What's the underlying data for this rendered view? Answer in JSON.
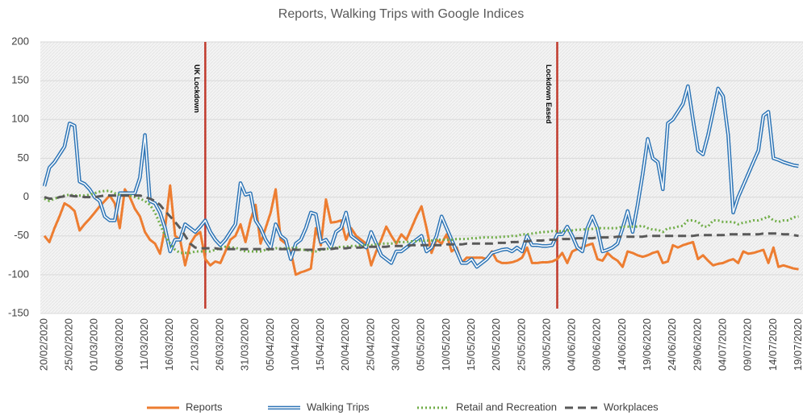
{
  "chart_data": {
    "type": "line",
    "title": "Reports, Walking Trips with Google Indices",
    "categories": [
      "20/02/2020",
      null,
      null,
      null,
      null,
      "25/02/2020",
      null,
      null,
      null,
      null,
      "01/03/2020",
      null,
      null,
      null,
      null,
      "06/03/2020",
      null,
      null,
      null,
      null,
      "11/03/2020",
      null,
      null,
      null,
      null,
      "16/03/2020",
      null,
      null,
      null,
      null,
      "21/03/2020",
      null,
      null,
      null,
      null,
      "26/03/2020",
      null,
      null,
      null,
      null,
      "31/03/2020",
      null,
      null,
      null,
      null,
      "05/04/2020",
      null,
      null,
      null,
      null,
      "10/04/2020",
      null,
      null,
      null,
      null,
      "15/04/2020",
      null,
      null,
      null,
      null,
      "20/04/2020",
      null,
      null,
      null,
      null,
      "25/04/2020",
      null,
      null,
      null,
      null,
      "30/04/2020",
      null,
      null,
      null,
      null,
      "05/05/2020",
      null,
      null,
      null,
      null,
      "10/05/2020",
      null,
      null,
      null,
      null,
      "15/05/2020",
      null,
      null,
      null,
      null,
      "20/05/2020",
      null,
      null,
      null,
      null,
      "25/05/2020",
      null,
      null,
      null,
      null,
      "30/05/2020",
      null,
      null,
      null,
      null,
      "04/06/2020",
      null,
      null,
      null,
      null,
      "09/06/2020",
      null,
      null,
      null,
      null,
      "14/06/2020",
      null,
      null,
      null,
      null,
      "19/06/2020",
      null,
      null,
      null,
      null,
      "24/06/2020",
      null,
      null,
      null,
      null,
      "29/06/2020",
      null,
      null,
      null,
      null,
      "04/07/2020",
      null,
      null,
      null,
      null,
      "09/07/2020",
      null,
      null,
      null,
      null,
      "14/07/2020",
      null,
      null,
      null,
      null,
      "19/07/2020"
    ],
    "series": [
      {
        "name": "Reports",
        "color": "#ed7d31",
        "style": "solid",
        "values": [
          -50,
          -58,
          -40,
          -25,
          -8,
          -12,
          -18,
          -43,
          -35,
          -28,
          -20,
          -12,
          -5,
          2,
          -8,
          -40,
          10,
          0,
          -15,
          -25,
          -45,
          -55,
          -60,
          -73,
          -40,
          15,
          -50,
          -55,
          -88,
          -60,
          -50,
          -45,
          -80,
          -88,
          -83,
          -85,
          -70,
          -55,
          -50,
          -35,
          -58,
          -30,
          -10,
          -60,
          -40,
          -20,
          10,
          -55,
          -60,
          -70,
          -100,
          -97,
          -95,
          -92,
          -40,
          -62,
          -3,
          -33,
          -32,
          -30,
          -55,
          -40,
          -50,
          -55,
          -60,
          -88,
          -70,
          -55,
          -38,
          -50,
          -60,
          -48,
          -55,
          -40,
          -25,
          -12,
          -40,
          -72,
          -55,
          -60,
          -48,
          -70,
          -65,
          -85,
          -78,
          -78,
          -78,
          -78,
          -80,
          -70,
          -82,
          -85,
          -85,
          -84,
          -82,
          -78,
          -65,
          -85,
          -85,
          -84,
          -84,
          -83,
          -80,
          -72,
          -85,
          -70,
          -67,
          -65,
          -62,
          -60,
          -80,
          -82,
          -72,
          -78,
          -82,
          -90,
          -70,
          -72,
          -75,
          -77,
          -75,
          -72,
          -70,
          -85,
          -83,
          -62,
          -65,
          -62,
          -60,
          -58,
          -80,
          -75,
          -82,
          -88,
          -86,
          -85,
          -82,
          -80,
          -85,
          -70,
          -73,
          -72,
          -70,
          -68,
          -85,
          -65,
          -90,
          -88,
          -90,
          -92,
          -93
        ]
      },
      {
        "name": "Walking Trips",
        "color": "#2e75b6",
        "style": "double",
        "values": [
          14,
          38,
          45,
          55,
          65,
          95,
          92,
          20,
          17,
          10,
          0,
          -5,
          -25,
          -30,
          -30,
          5,
          5,
          5,
          5,
          25,
          80,
          -5,
          -8,
          -20,
          -40,
          -70,
          -55,
          -55,
          -35,
          -40,
          -45,
          -38,
          -30,
          -45,
          -55,
          -62,
          -55,
          -45,
          -35,
          18,
          3,
          5,
          -30,
          -40,
          -55,
          -65,
          -35,
          -50,
          -55,
          -80,
          -60,
          -55,
          -40,
          -20,
          -22,
          -58,
          -55,
          -65,
          -45,
          -40,
          -20,
          -50,
          -55,
          -60,
          -65,
          -45,
          -60,
          -75,
          -80,
          -85,
          -70,
          -70,
          -65,
          -60,
          -55,
          -50,
          -70,
          -65,
          -50,
          -25,
          -40,
          -55,
          -70,
          -85,
          -85,
          -80,
          -90,
          -85,
          -80,
          -72,
          -70,
          -68,
          -67,
          -70,
          -65,
          -70,
          -50,
          -62,
          -62,
          -63,
          -63,
          -62,
          -48,
          -48,
          -38,
          -50,
          -65,
          -70,
          -40,
          -25,
          -40,
          -70,
          -68,
          -65,
          -60,
          -40,
          -18,
          -45,
          -10,
          30,
          75,
          50,
          45,
          10,
          95,
          100,
          110,
          120,
          143,
          100,
          60,
          55,
          80,
          110,
          140,
          130,
          80,
          -20,
          0,
          15,
          30,
          45,
          60,
          105,
          110,
          50,
          48,
          45,
          43,
          41,
          40
        ]
      },
      {
        "name": "Retail and Recreation",
        "color": "#70ad47",
        "style": "dotted",
        "values": [
          -2,
          -5,
          -2,
          0,
          2,
          3,
          2,
          2,
          2,
          3,
          5,
          7,
          8,
          8,
          5,
          3,
          2,
          2,
          0,
          -2,
          -5,
          -10,
          -20,
          -35,
          -50,
          -60,
          -68,
          -72,
          -72,
          -72,
          -70,
          -70,
          -70,
          -70,
          -68,
          -66,
          -64,
          -65,
          -65,
          -68,
          -70,
          -70,
          -70,
          -70,
          -68,
          -68,
          -66,
          -66,
          -66,
          -66,
          -65,
          -68,
          -68,
          -70,
          -70,
          -68,
          -67,
          -66,
          -65,
          -64,
          -64,
          -63,
          -63,
          -62,
          -62,
          -62,
          -61,
          -60,
          -60,
          -60,
          -58,
          -58,
          -58,
          -57,
          -57,
          -56,
          -56,
          -56,
          -55,
          -55,
          -55,
          -55,
          -54,
          -54,
          -54,
          -53,
          -53,
          -52,
          -52,
          -52,
          -52,
          -51,
          -51,
          -50,
          -50,
          -48,
          -48,
          -47,
          -46,
          -45,
          -45,
          -44,
          -44,
          -44,
          -43,
          -43,
          -42,
          -42,
          -41,
          -41,
          -40,
          -40,
          -40,
          -40,
          -40,
          -38,
          -38,
          -38,
          -38,
          -37,
          -40,
          -42,
          -42,
          -45,
          -40,
          -40,
          -38,
          -37,
          -30,
          -30,
          -32,
          -38,
          -38,
          -30,
          -30,
          -32,
          -32,
          -32,
          -35,
          -33,
          -32,
          -30,
          -30,
          -28,
          -25,
          -30,
          -32,
          -30,
          -30,
          -26,
          -25
        ]
      },
      {
        "name": "Workplaces",
        "color": "#595959",
        "style": "dashed",
        "values": [
          0,
          -2,
          -2,
          0,
          1,
          2,
          1,
          1,
          0,
          0,
          0,
          1,
          2,
          2,
          2,
          2,
          2,
          2,
          2,
          2,
          0,
          -2,
          -5,
          -10,
          -18,
          -25,
          -32,
          -40,
          -50,
          -60,
          -65,
          -66,
          -66,
          -66,
          -66,
          -67,
          -67,
          -67,
          -67,
          -67,
          -67,
          -67,
          -67,
          -67,
          -67,
          -67,
          -67,
          -67,
          -67,
          -67,
          -68,
          -68,
          -68,
          -68,
          -68,
          -67,
          -67,
          -67,
          -66,
          -66,
          -66,
          -65,
          -65,
          -65,
          -64,
          -64,
          -64,
          -64,
          -64,
          -63,
          -63,
          -63,
          -63,
          -62,
          -62,
          -62,
          -62,
          -62,
          -62,
          -62,
          -61,
          -61,
          -61,
          -61,
          -60,
          -60,
          -60,
          -60,
          -60,
          -60,
          -59,
          -59,
          -59,
          -58,
          -58,
          -57,
          -57,
          -56,
          -56,
          -56,
          -55,
          -55,
          -55,
          -54,
          -54,
          -54,
          -53,
          -53,
          -53,
          -53,
          -52,
          -52,
          -52,
          -52,
          -51,
          -51,
          -51,
          -51,
          -51,
          -51,
          -50,
          -50,
          -50,
          -50,
          -50,
          -50,
          -50,
          -50,
          -50,
          -50,
          -49,
          -49,
          -49,
          -49,
          -49,
          -49,
          -48,
          -48,
          -48,
          -48,
          -48,
          -48,
          -48,
          -47,
          -47,
          -47,
          -47,
          -48,
          -48,
          -49,
          -50
        ]
      }
    ],
    "ylim": [
      -150,
      200
    ],
    "yticks": [
      -150,
      -100,
      -50,
      0,
      50,
      100,
      150,
      200
    ],
    "grid": true,
    "legend": "bottom",
    "annotations": [
      {
        "label": "UK Lockdown",
        "index": 32,
        "color": "#c0392b"
      },
      {
        "label": "Lockdown Eased",
        "index": 102,
        "color": "#c0392b"
      }
    ]
  }
}
